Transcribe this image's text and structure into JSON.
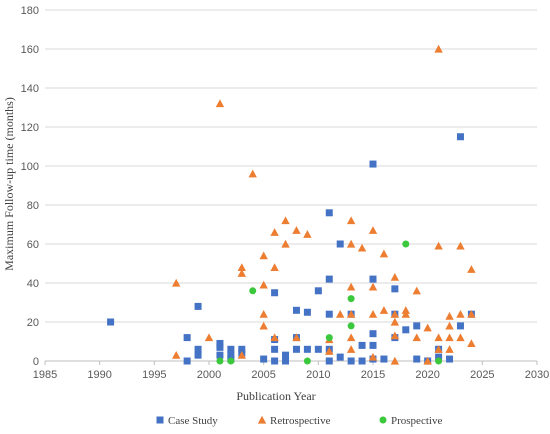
{
  "chart_data": {
    "type": "scatter",
    "title": "",
    "xlabel": "Publication Year",
    "ylabel": "Maximum Follow-up time (months)",
    "xlim": [
      1985,
      2030
    ],
    "ylim": [
      0,
      180
    ],
    "xticks": [
      1985,
      1990,
      1995,
      2000,
      2005,
      2010,
      2015,
      2020,
      2025,
      2030
    ],
    "yticks": [
      0,
      20,
      40,
      60,
      80,
      100,
      120,
      140,
      160,
      180
    ],
    "grid": "horizontal",
    "legend_position": "bottom",
    "series": [
      {
        "name": "Case Study",
        "marker": "square",
        "color": "#4472C4",
        "points": [
          [
            1991,
            20
          ],
          [
            1998,
            12
          ],
          [
            1998,
            0
          ],
          [
            1999,
            28
          ],
          [
            1999,
            6
          ],
          [
            1999,
            3
          ],
          [
            2001,
            9
          ],
          [
            2001,
            7
          ],
          [
            2001,
            3
          ],
          [
            2002,
            6
          ],
          [
            2002,
            3
          ],
          [
            2002,
            1
          ],
          [
            2003,
            6
          ],
          [
            2003,
            4
          ],
          [
            2005,
            1
          ],
          [
            2006,
            35
          ],
          [
            2006,
            11
          ],
          [
            2006,
            6
          ],
          [
            2006,
            0
          ],
          [
            2007,
            3
          ],
          [
            2007,
            0
          ],
          [
            2008,
            26
          ],
          [
            2008,
            12
          ],
          [
            2008,
            6
          ],
          [
            2009,
            25
          ],
          [
            2009,
            6
          ],
          [
            2010,
            36
          ],
          [
            2010,
            6
          ],
          [
            2011,
            76
          ],
          [
            2011,
            42
          ],
          [
            2011,
            24
          ],
          [
            2011,
            6
          ],
          [
            2011,
            0
          ],
          [
            2012,
            60
          ],
          [
            2012,
            2
          ],
          [
            2013,
            24
          ],
          [
            2013,
            0
          ],
          [
            2014,
            8
          ],
          [
            2014,
            0
          ],
          [
            2015,
            101
          ],
          [
            2015,
            42
          ],
          [
            2015,
            14
          ],
          [
            2015,
            8
          ],
          [
            2015,
            1
          ],
          [
            2016,
            1
          ],
          [
            2017,
            37
          ],
          [
            2017,
            24
          ],
          [
            2017,
            12
          ],
          [
            2018,
            16
          ],
          [
            2019,
            18
          ],
          [
            2019,
            1
          ],
          [
            2020,
            0
          ],
          [
            2021,
            6
          ],
          [
            2021,
            2
          ],
          [
            2022,
            1
          ],
          [
            2023,
            115
          ],
          [
            2023,
            18
          ],
          [
            2024,
            24
          ]
        ]
      },
      {
        "name": "Retrospective",
        "marker": "triangle",
        "color": "#ED7D31",
        "points": [
          [
            1997,
            40
          ],
          [
            1997,
            3
          ],
          [
            2000,
            12
          ],
          [
            2001,
            132
          ],
          [
            2003,
            48
          ],
          [
            2003,
            45
          ],
          [
            2003,
            3
          ],
          [
            2004,
            96
          ],
          [
            2005,
            54
          ],
          [
            2005,
            39
          ],
          [
            2005,
            24
          ],
          [
            2005,
            18
          ],
          [
            2006,
            66
          ],
          [
            2006,
            48
          ],
          [
            2006,
            12
          ],
          [
            2007,
            72
          ],
          [
            2007,
            60
          ],
          [
            2008,
            67
          ],
          [
            2008,
            12
          ],
          [
            2009,
            65
          ],
          [
            2011,
            11
          ],
          [
            2011,
            5
          ],
          [
            2012,
            24
          ],
          [
            2013,
            72
          ],
          [
            2013,
            60
          ],
          [
            2013,
            38
          ],
          [
            2013,
            24
          ],
          [
            2013,
            12
          ],
          [
            2013,
            6
          ],
          [
            2014,
            58
          ],
          [
            2015,
            67
          ],
          [
            2015,
            38
          ],
          [
            2015,
            24
          ],
          [
            2015,
            2
          ],
          [
            2016,
            55
          ],
          [
            2016,
            26
          ],
          [
            2017,
            43
          ],
          [
            2017,
            24
          ],
          [
            2017,
            20
          ],
          [
            2017,
            13
          ],
          [
            2017,
            0
          ],
          [
            2018,
            26
          ],
          [
            2018,
            24
          ],
          [
            2019,
            36
          ],
          [
            2019,
            12
          ],
          [
            2020,
            17
          ],
          [
            2020,
            0
          ],
          [
            2021,
            160
          ],
          [
            2021,
            59
          ],
          [
            2021,
            12
          ],
          [
            2021,
            6
          ],
          [
            2022,
            23
          ],
          [
            2022,
            18
          ],
          [
            2022,
            12
          ],
          [
            2022,
            6
          ],
          [
            2023,
            59
          ],
          [
            2023,
            24
          ],
          [
            2023,
            12
          ],
          [
            2024,
            47
          ],
          [
            2024,
            24
          ],
          [
            2024,
            9
          ]
        ]
      },
      {
        "name": "Prospective",
        "marker": "circle",
        "color": "#3CC83C",
        "points": [
          [
            2001,
            0
          ],
          [
            2002,
            0
          ],
          [
            2004,
            36
          ],
          [
            2009,
            0
          ],
          [
            2011,
            12
          ],
          [
            2013,
            32
          ],
          [
            2013,
            18
          ],
          [
            2018,
            60
          ],
          [
            2021,
            0
          ]
        ]
      }
    ]
  }
}
